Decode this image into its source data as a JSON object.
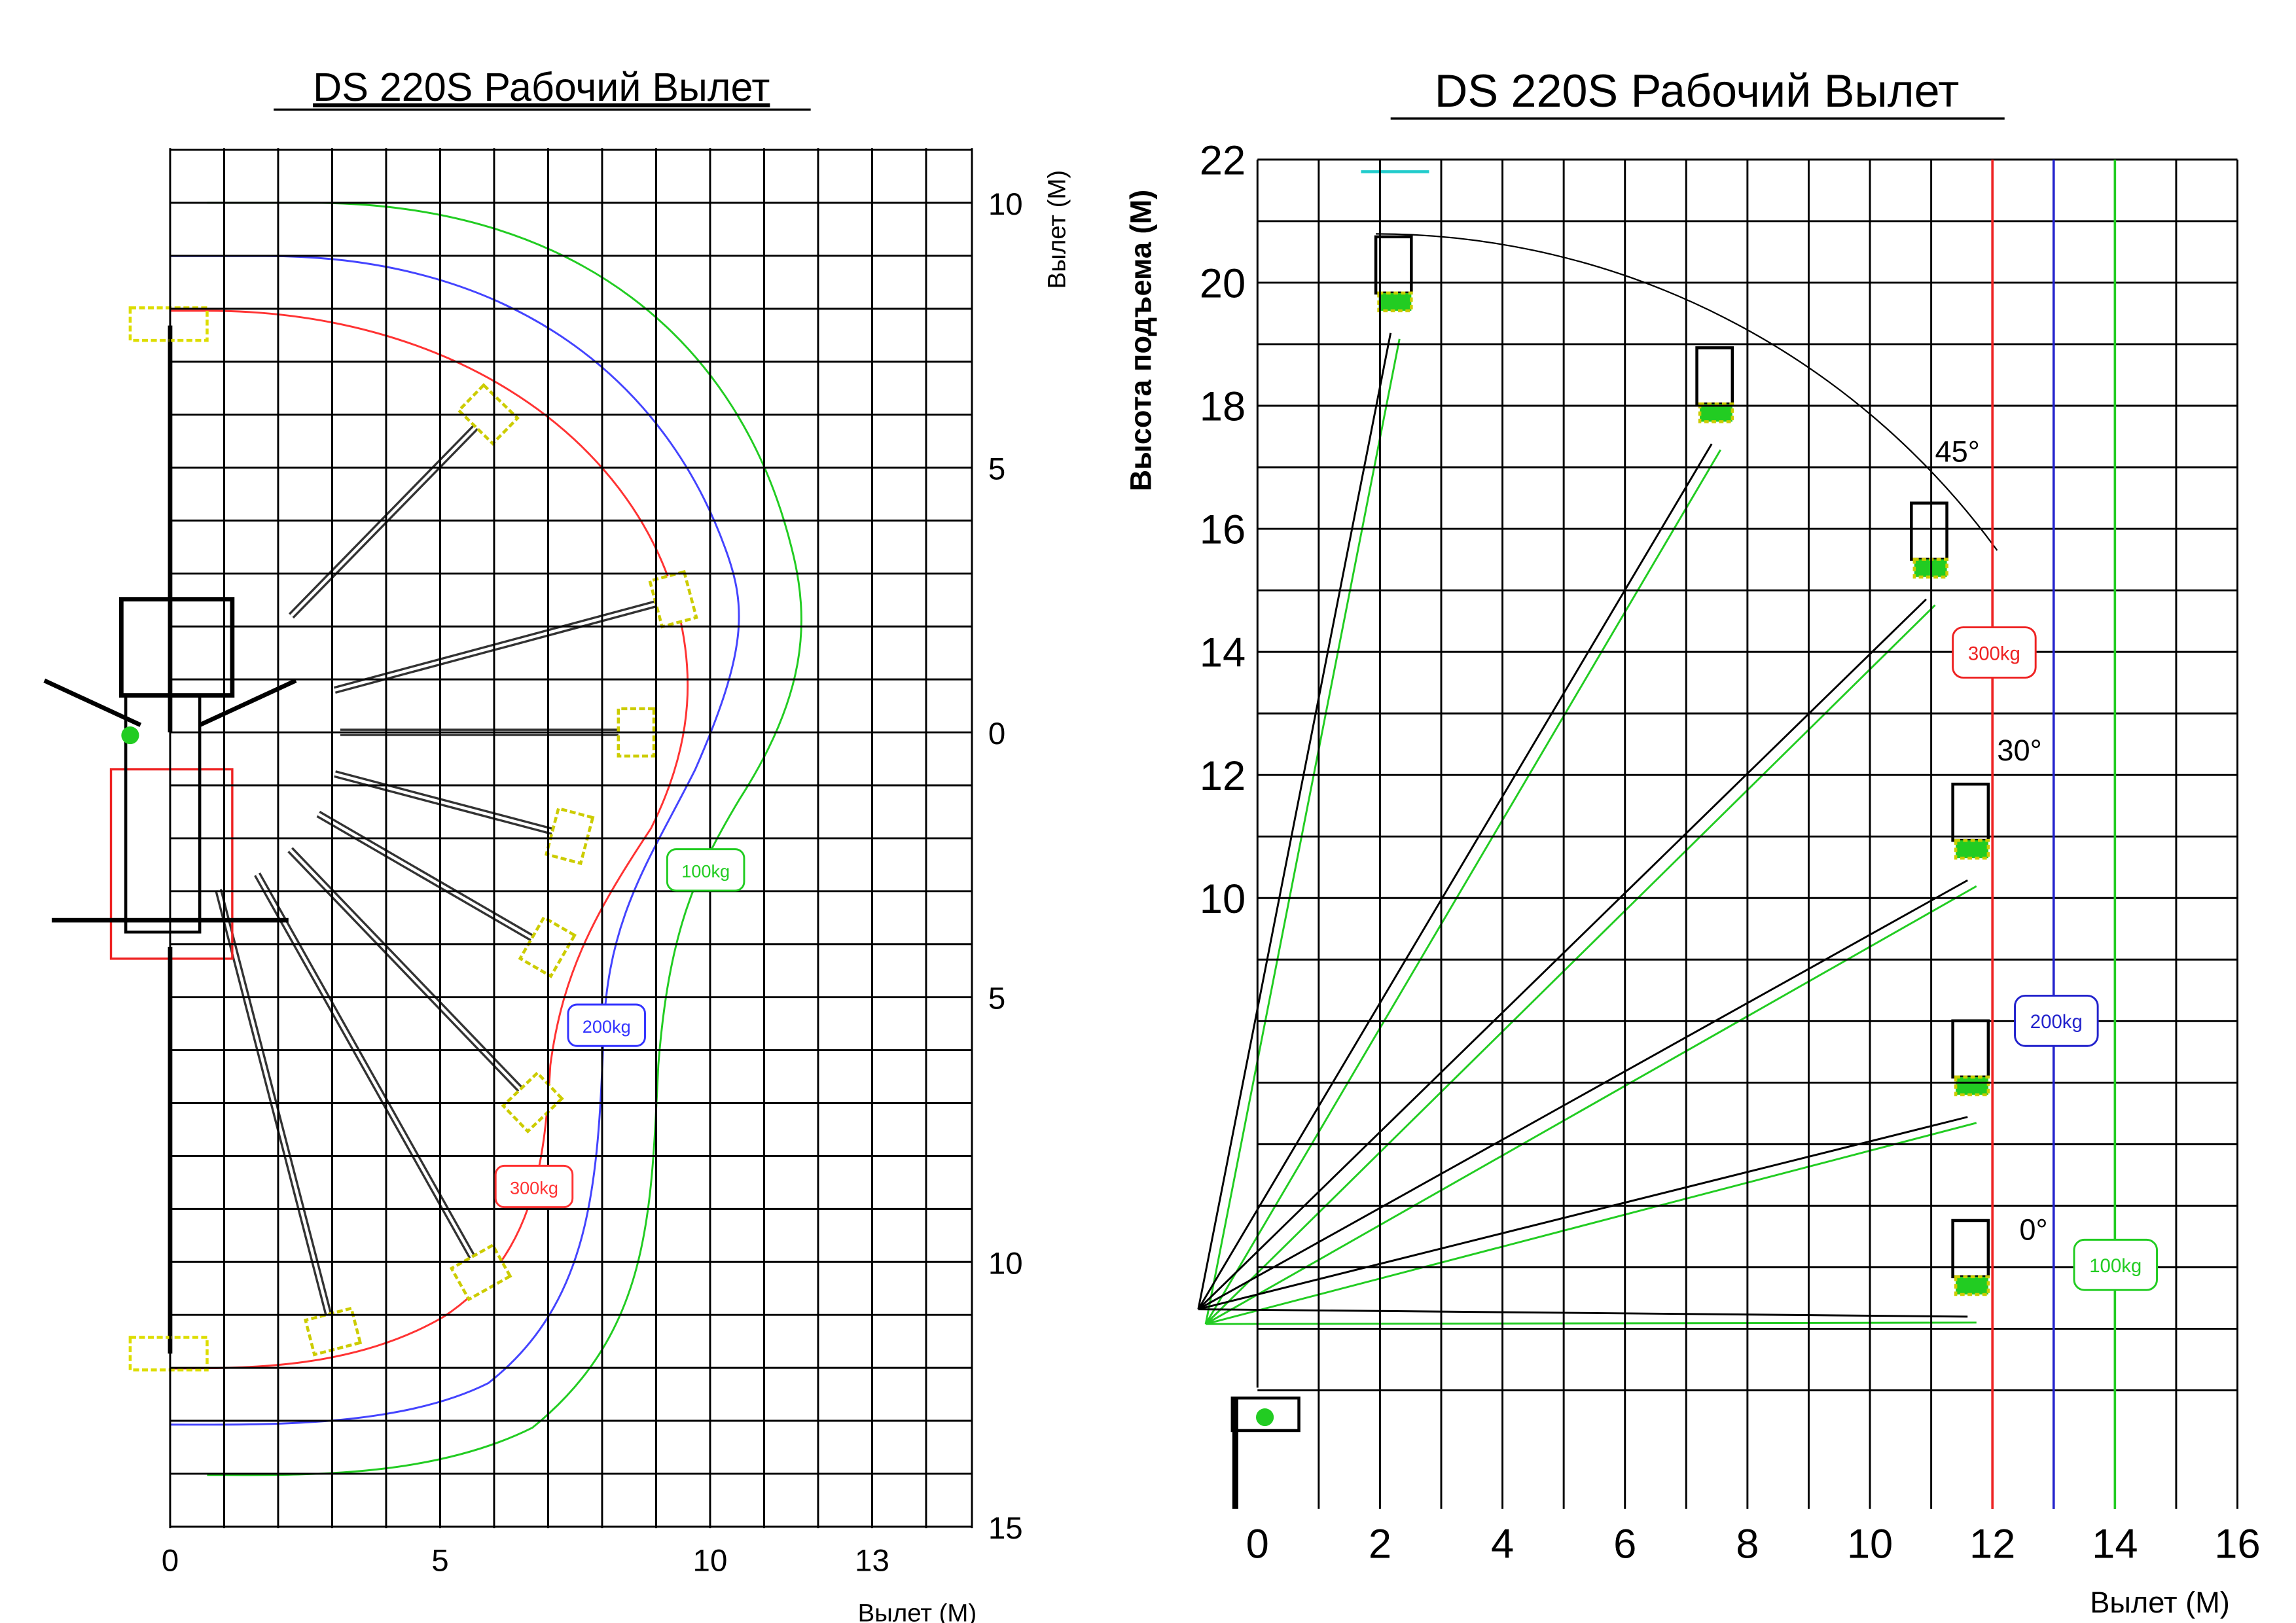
{
  "panels": [
    {
      "title": "DS 220S Рабочий Вылет",
      "x_axis_label": "Вылет (М)",
      "y_axis_label": "Вылет (М)",
      "xticks": [
        0,
        5,
        10,
        13
      ],
      "yticks": [
        10,
        5,
        0,
        {
          "value": -5,
          "label": "5"
        },
        {
          "value": -10,
          "label": "10"
        },
        {
          "value": -15,
          "label": "15"
        }
      ],
      "load_labels": [
        "100kg",
        "200kg",
        "300kg"
      ]
    },
    {
      "title": "DS 220S Рабочий Вылет",
      "x_axis_label": "Вылет (М)",
      "y_axis_label": "Высота подъема (М)",
      "xticks": [
        0,
        2,
        4,
        6,
        8,
        10,
        12,
        14,
        16
      ],
      "yticks": [
        10,
        12,
        14,
        16,
        18,
        20,
        22
      ],
      "angle_labels": [
        "45°",
        "30°",
        "0°"
      ],
      "load_labels": [
        "300kg",
        "200kg",
        "100kg"
      ]
    }
  ]
}
